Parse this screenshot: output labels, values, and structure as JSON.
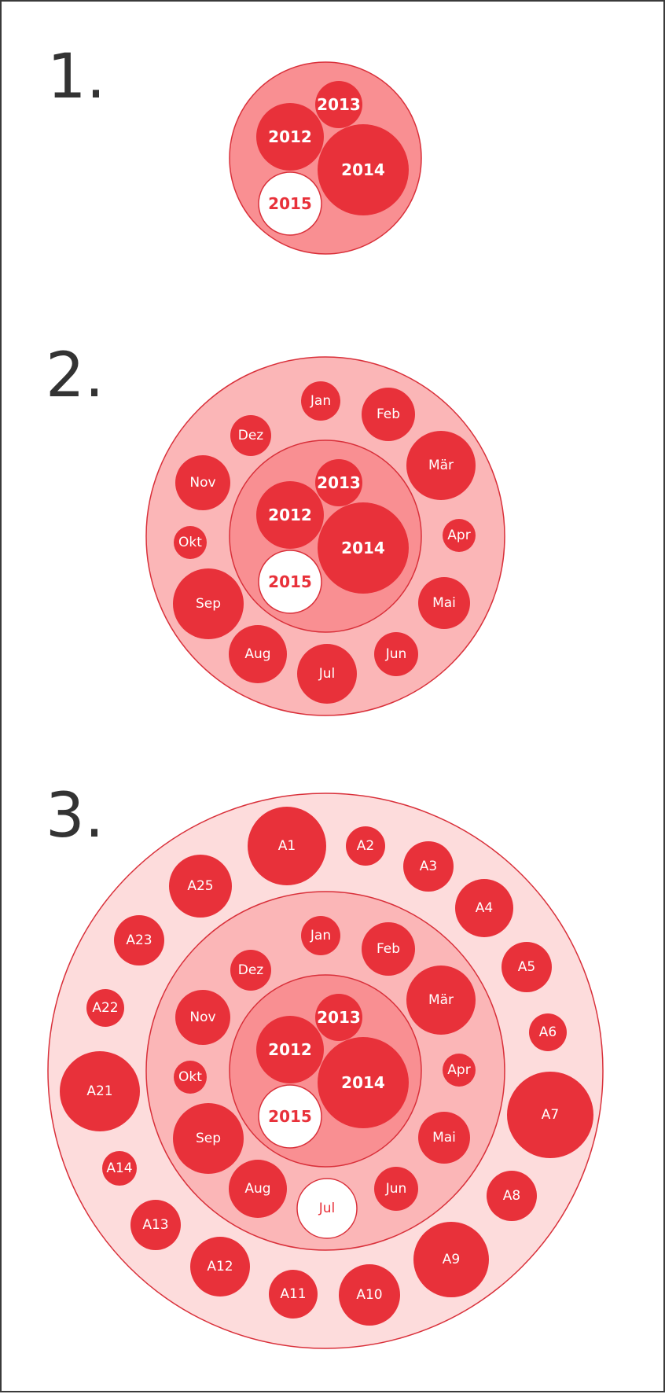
{
  "colors": {
    "accent": "#e8313a",
    "stroke": "#d9303a",
    "white": "#ffffff",
    "ring_years": "#f98f92",
    "ring_months": "#fbb6b7",
    "ring_areas": "#fddcdc",
    "text_dark": "#333333"
  },
  "steps": [
    "1.",
    "2.",
    "3."
  ],
  "years": [
    "2013",
    "2012",
    "2014",
    "2015"
  ],
  "months": [
    "Jan",
    "Feb",
    "Mär",
    "Apr",
    "Mai",
    "Jun",
    "Jul",
    "Aug",
    "Sep",
    "Okt",
    "Nov",
    "Dez"
  ],
  "areas": [
    "A1",
    "A2",
    "A3",
    "A4",
    "A5",
    "A6",
    "A7",
    "A8",
    "A9",
    "A10",
    "A11",
    "A12",
    "A13",
    "A14",
    "A21",
    "A22",
    "A23",
    "A25"
  ],
  "highlight": {
    "diagram1": [
      "2015"
    ],
    "diagram2": [
      "2015"
    ],
    "diagram3": [
      "2015",
      "Jul"
    ]
  }
}
